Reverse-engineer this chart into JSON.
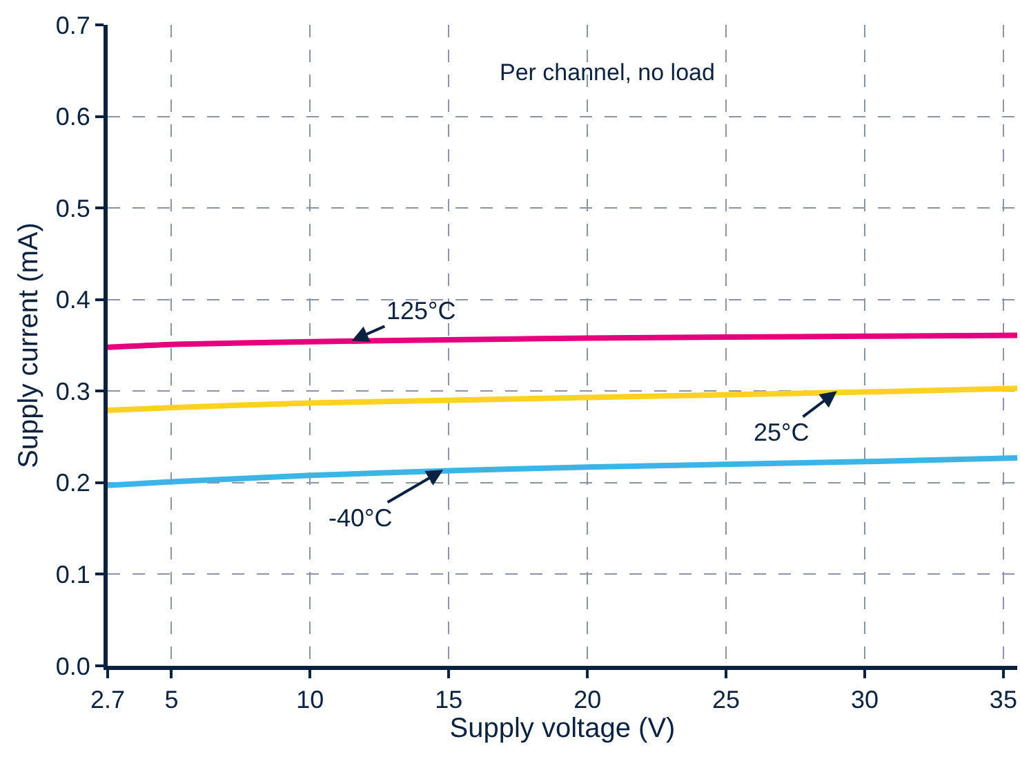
{
  "chart_data": {
    "type": "line",
    "xlabel": "Supply voltage (V)",
    "ylabel": "Supply current (mA)",
    "xlim": [
      2.7,
      35.5
    ],
    "ylim": [
      0,
      0.7
    ],
    "xticks": [
      2.7,
      5,
      10,
      15,
      20,
      25,
      30,
      35
    ],
    "yticks": [
      {
        "value": 0,
        "label": "0.0"
      },
      0.1,
      0.2,
      0.3,
      0.4,
      0.5,
      0.6,
      0.7
    ],
    "grid": true,
    "line_style": "solid",
    "marker": "none",
    "series": [
      {
        "color": "#e6007e",
        "x": [
          2.7,
          5,
          10,
          15,
          20,
          25,
          30,
          35.5
        ],
        "values": [
          0.348,
          0.351,
          0.354,
          0.356,
          0.358,
          0.359,
          0.36,
          0.361
        ]
      },
      {
        "color": "#ffd221",
        "x": [
          2.7,
          5,
          10,
          15,
          20,
          25,
          30,
          35.5
        ],
        "values": [
          0.279,
          0.282,
          0.287,
          0.29,
          0.293,
          0.296,
          0.299,
          0.303
        ]
      },
      {
        "color": "#3cb4e5",
        "x": [
          2.7,
          5,
          10,
          15,
          20,
          25,
          30,
          35.5
        ],
        "values": [
          0.197,
          0.201,
          0.208,
          0.213,
          0.217,
          0.22,
          0.223,
          0.227
        ]
      }
    ],
    "annotations": [
      {
        "text": "125°C",
        "x": 11.5,
        "y": 0.355
      },
      {
        "text": "25°C",
        "x": 29,
        "y": 0.3
      },
      {
        "text": "-40°C",
        "x": 14.8,
        "y": 0.214
      },
      "Per channel, no load"
    ]
  }
}
